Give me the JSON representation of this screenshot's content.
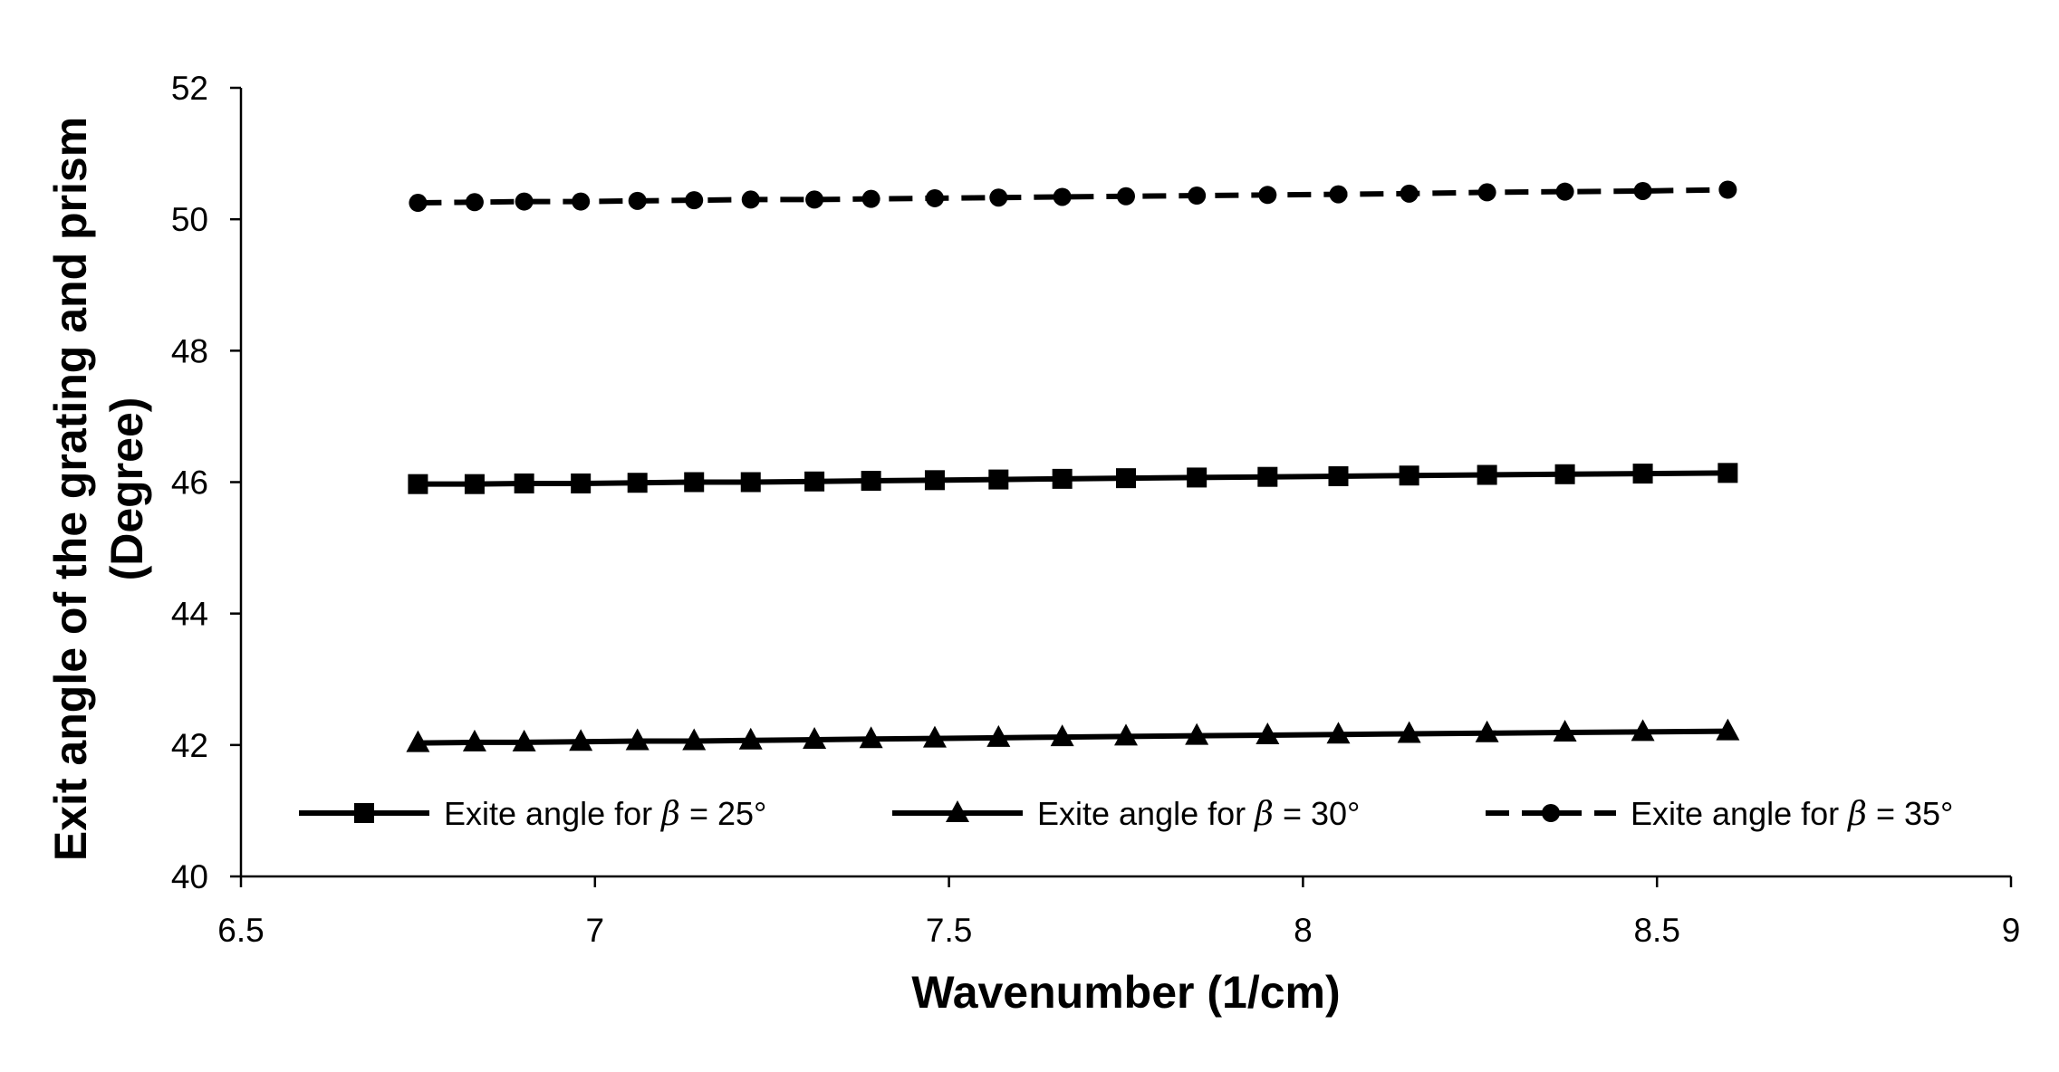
{
  "chart_data": {
    "type": "line",
    "title": "",
    "xlabel": "Wavenumber (1/cm)",
    "ylabel_lines": [
      "Exit angle of the grating and prism",
      "(Degree)"
    ],
    "xlim": [
      6.5,
      9
    ],
    "ylim": [
      40,
      52
    ],
    "x_ticks": [
      6.5,
      7,
      7.5,
      8,
      8.5,
      9
    ],
    "x_tick_labels": [
      "6.5",
      "7",
      "7.5",
      "8",
      "8.5",
      "9"
    ],
    "y_ticks": [
      40,
      42,
      44,
      46,
      48,
      50,
      52
    ],
    "y_tick_labels": [
      "40",
      "42",
      "44",
      "46",
      "48",
      "50",
      "52"
    ],
    "grid": false,
    "legend_position": "bottom-inside",
    "x": [
      6.75,
      6.83,
      6.9,
      6.98,
      7.06,
      7.14,
      7.22,
      7.31,
      7.39,
      7.48,
      7.57,
      7.66,
      7.75,
      7.85,
      7.95,
      8.05,
      8.15,
      8.26,
      8.37,
      8.48,
      8.6
    ],
    "series": [
      {
        "name_prefix": "Exite angle for ",
        "name_symbol": "β",
        "name_suffix": " = 25°",
        "marker": "square",
        "dash": "solid",
        "color": "#000000",
        "values": [
          45.97,
          45.97,
          45.98,
          45.98,
          45.99,
          46.0,
          46.0,
          46.01,
          46.02,
          46.03,
          46.04,
          46.05,
          46.06,
          46.07,
          46.08,
          46.09,
          46.1,
          46.11,
          46.12,
          46.13,
          46.14
        ]
      },
      {
        "name_prefix": "Exite angle for ",
        "name_symbol": "β",
        "name_suffix": " = 30°",
        "marker": "triangle",
        "dash": "solid",
        "color": "#000000",
        "values": [
          42.03,
          42.04,
          42.04,
          42.05,
          42.06,
          42.06,
          42.07,
          42.08,
          42.09,
          42.1,
          42.11,
          42.12,
          42.13,
          42.14,
          42.15,
          42.16,
          42.17,
          42.18,
          42.19,
          42.2,
          42.21
        ]
      },
      {
        "name_prefix": "Exite angle for ",
        "name_symbol": "β",
        "name_suffix": " = 35°",
        "marker": "circle",
        "dash": "dashed",
        "color": "#000000",
        "values": [
          50.25,
          50.26,
          50.27,
          50.27,
          50.28,
          50.29,
          50.3,
          50.3,
          50.31,
          50.32,
          50.33,
          50.34,
          50.35,
          50.36,
          50.37,
          50.38,
          50.39,
          50.41,
          50.42,
          50.43,
          50.45
        ]
      }
    ]
  }
}
